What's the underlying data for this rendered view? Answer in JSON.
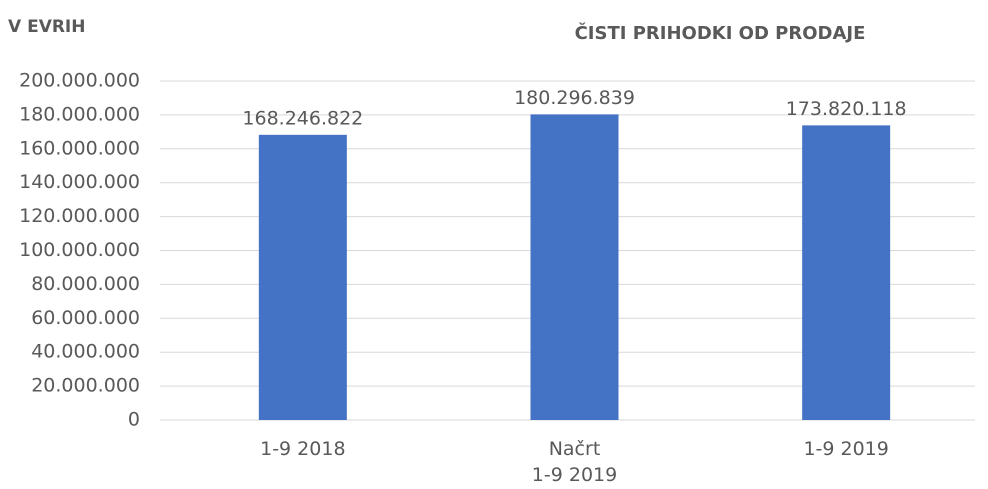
{
  "chart_data": {
    "type": "bar",
    "title": "ČISTI PRIHODKI OD PRODAJE",
    "y_label": "V EVRIH",
    "categories": [
      "1-9 2018",
      "Načrt\n1-9 2019",
      "1-9 2019"
    ],
    "values": [
      168246822,
      180296839,
      173820118
    ],
    "value_labels": [
      "168.246.822",
      "180.296.839",
      "173.820.118"
    ],
    "color": "#4472c4",
    "ylim": [
      0,
      200000000
    ],
    "yticks": [
      0,
      {
        "value": 20000000,
        "label": "20.000.000"
      },
      {
        "value": 40000000,
        "label": "40.000.000"
      },
      {
        "value": 60000000,
        "label": "60.000.000"
      },
      {
        "value": 80000000,
        "label": "80.000.000"
      },
      {
        "value": 100000000,
        "label": "100.000.000"
      },
      {
        "value": 120000000,
        "label": "120.000.000"
      },
      {
        "value": 140000000,
        "label": "140.000.000"
      },
      {
        "value": 160000000,
        "label": "160.000.000"
      },
      {
        "value": 180000000,
        "label": "180.000.000"
      },
      {
        "value": 200000000,
        "label": "200.000.000"
      }
    ],
    "grid": true
  }
}
